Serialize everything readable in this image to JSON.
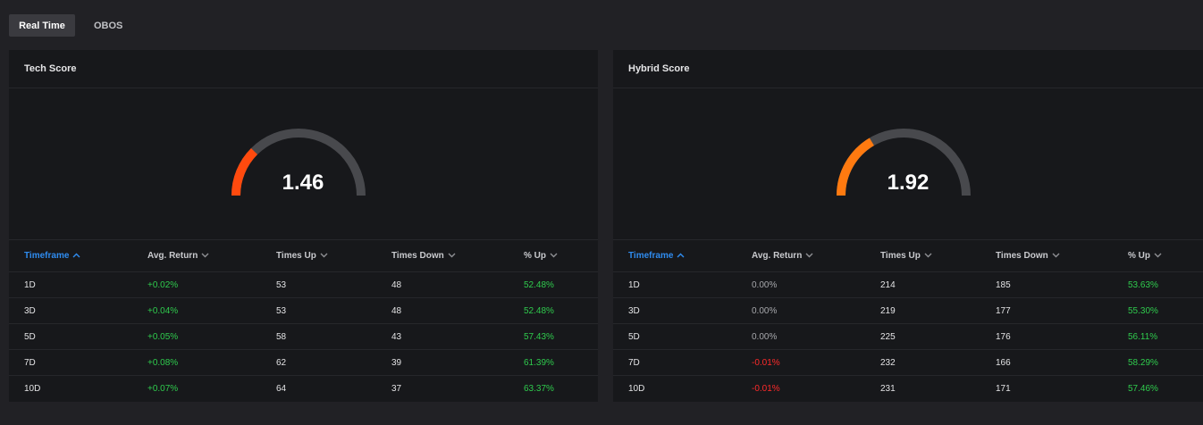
{
  "tabs": [
    {
      "label": "Real Time",
      "active": true
    },
    {
      "label": "OBOS",
      "active": false
    }
  ],
  "colors": {
    "positive": "#2fcb4d",
    "negative": "#ff2a2a",
    "neutral": "#a6a7ab",
    "sort_active": "#2f8cf0",
    "gauge_track": "#48494d"
  },
  "panels": [
    {
      "title": "Tech Score",
      "gauge": {
        "value_label": "1.46",
        "fill_fraction": 0.25,
        "color": "#ff4a0e"
      },
      "columns": [
        "Timeframe",
        "Avg. Return",
        "Times Up",
        "Times Down",
        "% Up"
      ],
      "sort_column": 0,
      "rows": [
        {
          "timeframe": "1D",
          "avg_return": "+0.02%",
          "avg_tone": "pos",
          "times_up": "53",
          "times_down": "48",
          "pct_up": "52.48%"
        },
        {
          "timeframe": "3D",
          "avg_return": "+0.04%",
          "avg_tone": "pos",
          "times_up": "53",
          "times_down": "48",
          "pct_up": "52.48%"
        },
        {
          "timeframe": "5D",
          "avg_return": "+0.05%",
          "avg_tone": "pos",
          "times_up": "58",
          "times_down": "43",
          "pct_up": "57.43%"
        },
        {
          "timeframe": "7D",
          "avg_return": "+0.08%",
          "avg_tone": "pos",
          "times_up": "62",
          "times_down": "39",
          "pct_up": "61.39%"
        },
        {
          "timeframe": "10D",
          "avg_return": "+0.07%",
          "avg_tone": "pos",
          "times_up": "64",
          "times_down": "37",
          "pct_up": "63.37%"
        }
      ]
    },
    {
      "title": "Hybrid Score",
      "gauge": {
        "value_label": "1.92",
        "fill_fraction": 0.33,
        "color": "#ff7a10"
      },
      "columns": [
        "Timeframe",
        "Avg. Return",
        "Times Up",
        "Times Down",
        "% Up"
      ],
      "sort_column": 0,
      "rows": [
        {
          "timeframe": "1D",
          "avg_return": "0.00%",
          "avg_tone": "neu",
          "times_up": "214",
          "times_down": "185",
          "pct_up": "53.63%"
        },
        {
          "timeframe": "3D",
          "avg_return": "0.00%",
          "avg_tone": "neu",
          "times_up": "219",
          "times_down": "177",
          "pct_up": "55.30%"
        },
        {
          "timeframe": "5D",
          "avg_return": "0.00%",
          "avg_tone": "neu",
          "times_up": "225",
          "times_down": "176",
          "pct_up": "56.11%"
        },
        {
          "timeframe": "7D",
          "avg_return": "-0.01%",
          "avg_tone": "neg",
          "times_up": "232",
          "times_down": "166",
          "pct_up": "58.29%"
        },
        {
          "timeframe": "10D",
          "avg_return": "-0.01%",
          "avg_tone": "neg",
          "times_up": "231",
          "times_down": "171",
          "pct_up": "57.46%"
        }
      ]
    }
  ]
}
